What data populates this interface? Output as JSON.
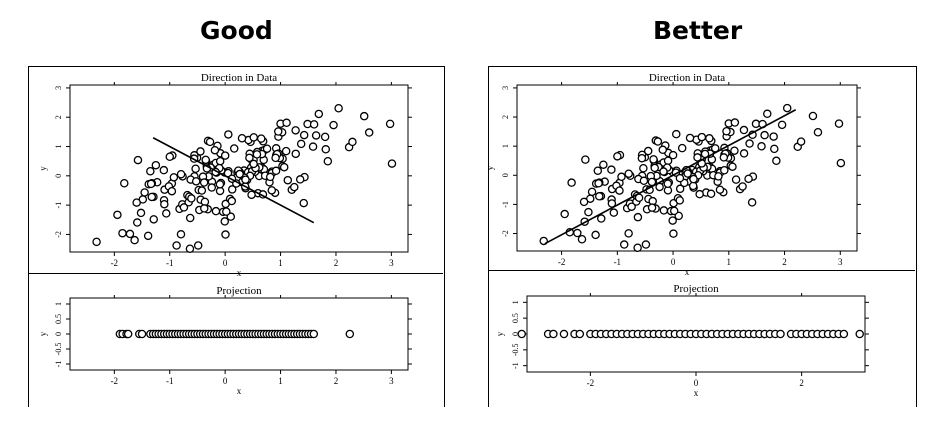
{
  "panels": [
    {
      "title": "Good"
    },
    {
      "title": "Better"
    }
  ],
  "chart_data": [
    {
      "type": "scatter",
      "title": "Direction in Data",
      "xlabel": "x",
      "ylabel": "y",
      "xlim": [
        -2.8,
        3.3
      ],
      "ylim": [
        -2.6,
        3.1
      ],
      "xticks": [
        "-2",
        "-1",
        "0",
        "1",
        "2",
        "3"
      ],
      "xtick_values": [
        -2,
        -1,
        0,
        1,
        2,
        3
      ],
      "yticks": [
        "-2",
        "-1",
        "0",
        "1",
        "2",
        "3"
      ],
      "ytick_values": [
        -2,
        -1,
        0,
        1,
        2,
        3
      ],
      "line": {
        "x": [
          -1.3,
          1.6
        ],
        "y": [
          1.3,
          -1.6
        ]
      },
      "seed": 7
    },
    {
      "type": "scatter",
      "title": "Projection",
      "xlabel": "x",
      "ylabel": "y",
      "xlim": [
        -2.8,
        3.3
      ],
      "ylim": [
        -1.2,
        1.2
      ],
      "xticks": [
        "-2",
        "-1",
        "0",
        "1",
        "2",
        "3"
      ],
      "xtick_values": [
        -2,
        -1,
        0,
        1,
        2,
        3
      ],
      "yticks": [
        "-1",
        "-0.5",
        "0",
        "0.5",
        "1"
      ],
      "ytick_values": [
        -1,
        -0.5,
        0,
        0.5,
        1
      ],
      "y_value": 0,
      "points_x": [
        -1.9,
        -1.85,
        -1.78,
        -1.75,
        -1.55,
        -1.5,
        -1.35,
        -1.3,
        -1.25,
        -1.2,
        -1.15,
        -1.1,
        -1.05,
        -1.0,
        -0.95,
        -0.9,
        -0.85,
        -0.8,
        -0.75,
        -0.7,
        -0.65,
        -0.6,
        -0.55,
        -0.5,
        -0.45,
        -0.4,
        -0.35,
        -0.3,
        -0.25,
        -0.2,
        -0.15,
        -0.1,
        -0.05,
        0.0,
        0.05,
        0.1,
        0.15,
        0.2,
        0.25,
        0.3,
        0.35,
        0.4,
        0.45,
        0.5,
        0.55,
        0.6,
        0.65,
        0.7,
        0.75,
        0.8,
        0.85,
        0.9,
        0.95,
        1.0,
        1.05,
        1.1,
        1.15,
        1.2,
        1.25,
        1.3,
        1.35,
        1.4,
        1.45,
        1.5,
        1.55,
        1.6,
        2.25
      ]
    },
    {
      "type": "scatter",
      "title": "Direction in Data",
      "xlabel": "x",
      "ylabel": "y",
      "xlim": [
        -2.8,
        3.3
      ],
      "ylim": [
        -2.6,
        3.1
      ],
      "xticks": [
        "-2",
        "-1",
        "0",
        "1",
        "2",
        "3"
      ],
      "xtick_values": [
        -2,
        -1,
        0,
        1,
        2,
        3
      ],
      "yticks": [
        "-2",
        "-1",
        "0",
        "1",
        "2",
        "3"
      ],
      "ytick_values": [
        -2,
        -1,
        0,
        1,
        2,
        3
      ],
      "line": {
        "x": [
          -2.3,
          2.2
        ],
        "y": [
          -2.35,
          2.25
        ]
      },
      "seed": 7
    },
    {
      "type": "scatter",
      "title": "Projection",
      "xlabel": "x",
      "ylabel": "y",
      "xlim": [
        -3.2,
        3.2
      ],
      "ylim": [
        -1.2,
        1.2
      ],
      "xticks": [
        "-2",
        "0",
        "2"
      ],
      "xtick_values": [
        -2,
        0,
        2
      ],
      "yticks": [
        "-1",
        "-0.5",
        "0",
        "0.5",
        "1"
      ],
      "ytick_values": [
        -1,
        -0.5,
        0,
        0.5,
        1
      ],
      "y_value": 0,
      "points_x": [
        -3.3,
        -2.8,
        -2.7,
        -2.5,
        -2.3,
        -2.2,
        -2.0,
        -1.9,
        -1.8,
        -1.7,
        -1.6,
        -1.5,
        -1.4,
        -1.3,
        -1.2,
        -1.1,
        -1.0,
        -0.9,
        -0.8,
        -0.7,
        -0.6,
        -0.5,
        -0.4,
        -0.3,
        -0.2,
        -0.1,
        0.0,
        0.1,
        0.2,
        0.3,
        0.4,
        0.5,
        0.6,
        0.7,
        0.8,
        0.9,
        1.0,
        1.1,
        1.2,
        1.3,
        1.4,
        1.5,
        1.6,
        1.8,
        1.9,
        2.0,
        2.1,
        2.2,
        2.3,
        2.4,
        2.5,
        2.6,
        2.7,
        2.8,
        3.1
      ]
    }
  ]
}
